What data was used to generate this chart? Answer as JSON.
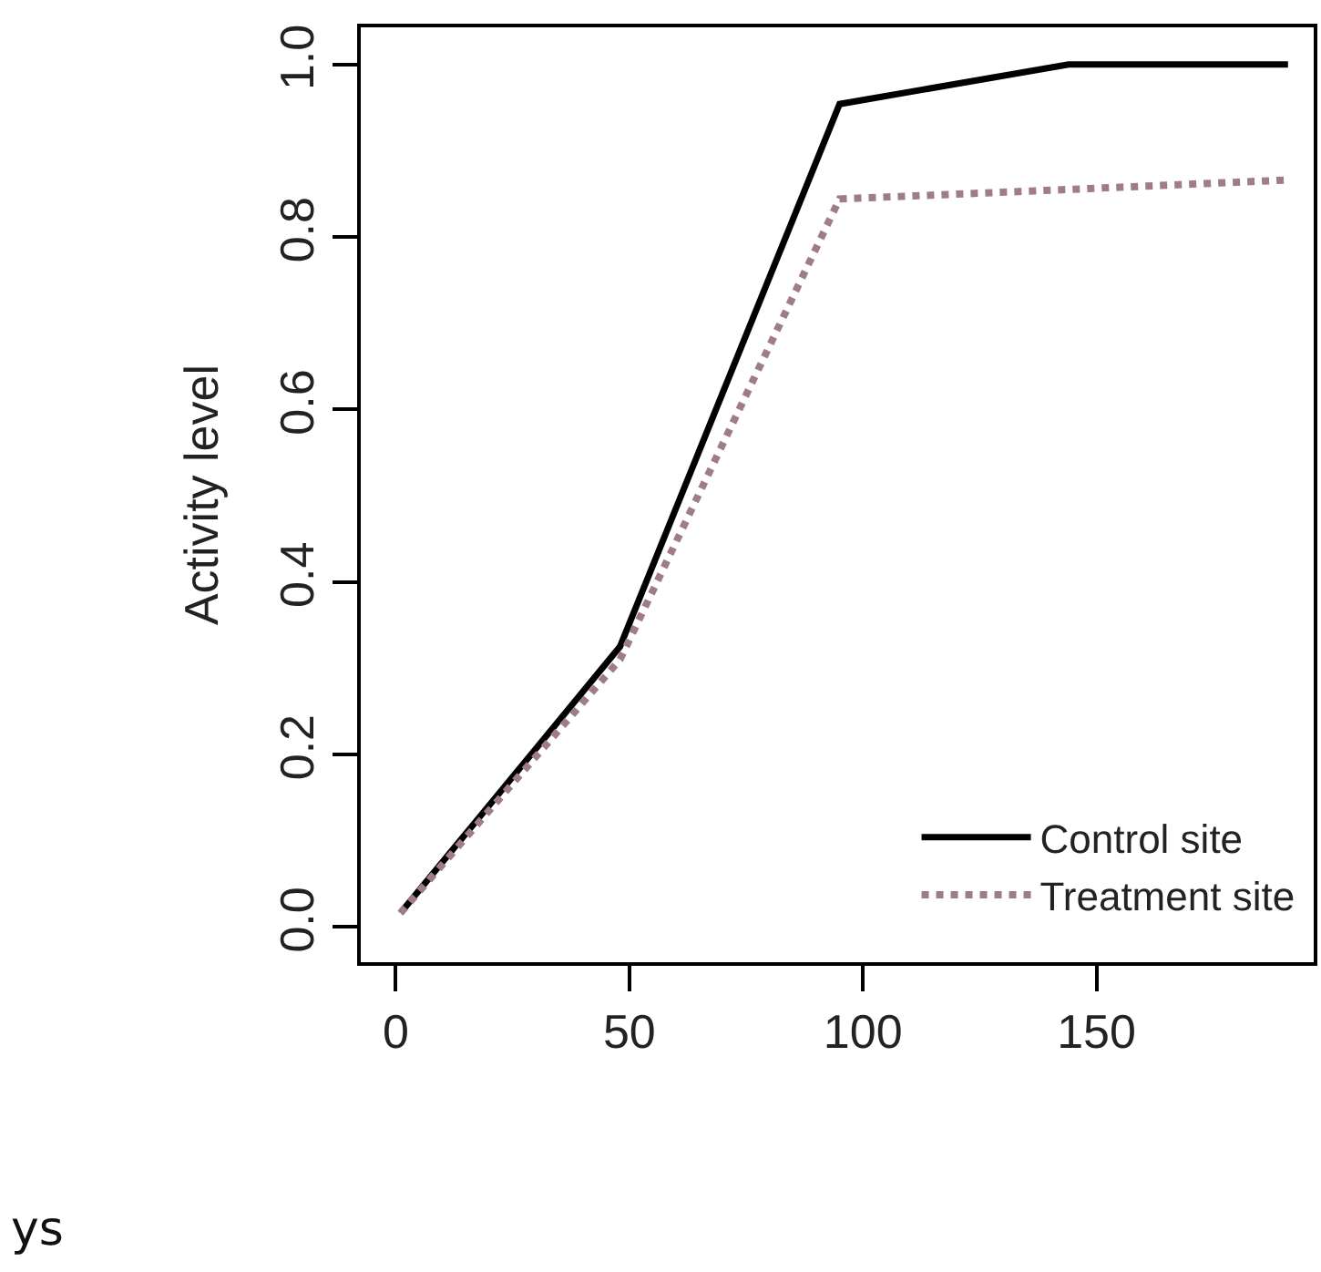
{
  "chart_data": {
    "type": "line",
    "ylabel": "Activity level",
    "x": [
      1,
      48,
      95,
      144,
      191
    ],
    "series": [
      {
        "name": "Control site",
        "color": "#000000",
        "line_style": "solid",
        "values": [
          0.016,
          0.325,
          0.954,
          1.0,
          1.0
        ]
      },
      {
        "name": "Treatment site",
        "color": "#a07c88",
        "line_style": "dotted",
        "values": [
          0.016,
          0.31,
          0.844,
          0.855,
          0.866
        ]
      }
    ],
    "xlim": [
      -7.5,
      196.5
    ],
    "ylim": [
      -0.041,
      1.043
    ],
    "xticks": [
      0,
      50,
      100,
      150
    ],
    "yticks": [
      {
        "value": 0,
        "label": "0.0"
      },
      {
        "value": 0.2,
        "label": "0.2"
      },
      {
        "value": 0.4,
        "label": "0.4"
      },
      {
        "value": 0.6,
        "label": "0.6"
      },
      {
        "value": 0.8,
        "label": "0.8"
      },
      {
        "value": 1,
        "label": "1.0"
      }
    ],
    "legend": "bottom right",
    "marker": "none",
    "annotations": [
      "ys"
    ]
  }
}
